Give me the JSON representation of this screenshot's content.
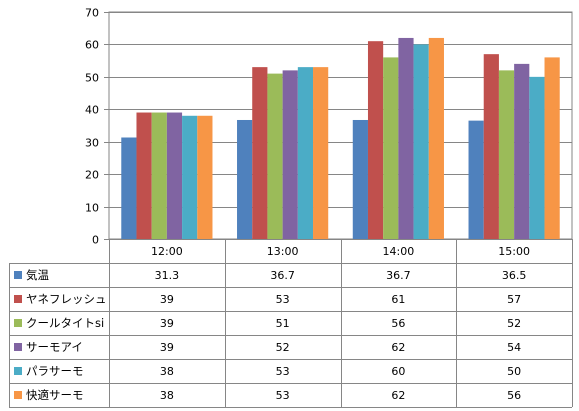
{
  "chart_data": {
    "type": "bar",
    "title": "",
    "xlabel": "",
    "ylabel": "",
    "ylim": [
      0,
      70
    ],
    "yticks": [
      0,
      10,
      20,
      30,
      40,
      50,
      60,
      70
    ],
    "grid": true,
    "legend": "data-table-left",
    "categories": [
      "12:00",
      "13:00",
      "14:00",
      "15:00"
    ],
    "series": [
      {
        "name": "気温",
        "color": "#4F81BD",
        "values": [
          31.3,
          36.7,
          36.7,
          36.5
        ],
        "labels": [
          "31.3",
          "36.7",
          "36.7",
          "36.5"
        ]
      },
      {
        "name": "ヤネフレッシュ",
        "color": "#C0504D",
        "values": [
          39,
          53,
          61,
          57
        ],
        "labels": [
          "39",
          "53",
          "61",
          "57"
        ]
      },
      {
        "name": "クールタイトsi",
        "color": "#9BBB59",
        "values": [
          39,
          51,
          56,
          52
        ],
        "labels": [
          "39",
          "51",
          "56",
          "52"
        ]
      },
      {
        "name": "サーモアイ",
        "color": "#8064A2",
        "values": [
          39,
          52,
          62,
          54
        ],
        "labels": [
          "39",
          "52",
          "62",
          "54"
        ]
      },
      {
        "name": "パラサーモ",
        "color": "#4BACC6",
        "values": [
          38,
          53,
          60,
          50
        ],
        "labels": [
          "38",
          "53",
          "60",
          "50"
        ]
      },
      {
        "name": "快適サーモ",
        "color": "#F79646",
        "values": [
          38,
          53,
          62,
          56
        ],
        "labels": [
          "38",
          "53",
          "62",
          "56"
        ]
      }
    ]
  }
}
